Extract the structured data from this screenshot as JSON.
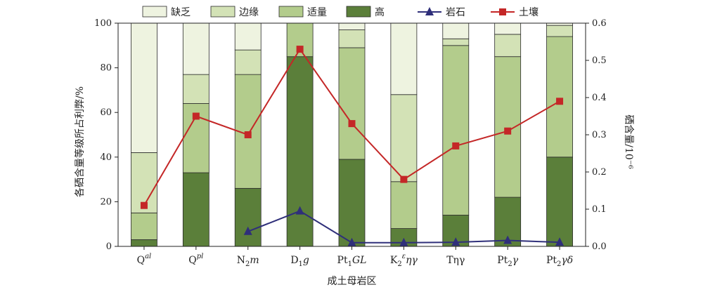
{
  "chart_data": {
    "type": "bar",
    "stacked": true,
    "xlabel": "成土母岩区",
    "ylabel": "各硒含量等级所占利弊/%",
    "y2label": "硒含量/10⁻⁶",
    "ylim": [
      0,
      100
    ],
    "y2lim": [
      0,
      0.6
    ],
    "yticks": [
      0,
      20,
      40,
      60,
      80,
      100
    ],
    "y2ticks": [
      "0.0",
      "0.1",
      "0.2",
      "0.3",
      "0.4",
      "0.5",
      "0.6"
    ],
    "categories": [
      {
        "base": "Q",
        "sup": "al",
        "sub": "",
        "tail": ""
      },
      {
        "base": "Q",
        "sup": "pl",
        "sub": "",
        "tail": ""
      },
      {
        "base": "N",
        "sub": "2",
        "sup": "",
        "tail": "m"
      },
      {
        "base": "D",
        "sub": "1",
        "sup": "",
        "tail": "g"
      },
      {
        "base": "Pt",
        "sub": "1",
        "sup": "",
        "tail": "GL"
      },
      {
        "base": "K",
        "sub": "2",
        "sup": "ε",
        "tail": "ηγ"
      },
      {
        "base": "Tηγ",
        "sub": "",
        "sup": "",
        "tail": ""
      },
      {
        "base": "Pt",
        "sub": "2",
        "sup": "",
        "tail": "γ"
      },
      {
        "base": "Pt",
        "sub": "2",
        "sup": "",
        "tail": "γδ"
      }
    ],
    "series": [
      {
        "name": "高",
        "kind": "bar",
        "color": "#5b7f3a",
        "values": [
          3,
          33,
          26,
          85,
          39,
          8,
          14,
          22,
          40
        ]
      },
      {
        "name": "适量",
        "kind": "bar",
        "color": "#b3cc8c",
        "values": [
          12,
          31,
          51,
          15,
          50,
          21,
          76,
          63,
          54
        ]
      },
      {
        "name": "边缘",
        "kind": "bar",
        "color": "#d3e2b6",
        "values": [
          27,
          13,
          11,
          0,
          8,
          39,
          3,
          10,
          5
        ]
      },
      {
        "name": "缺乏",
        "kind": "bar",
        "color": "#eef3e0",
        "values": [
          58,
          23,
          12,
          0,
          3,
          32,
          7,
          5,
          1
        ]
      },
      {
        "name": "岩石",
        "kind": "line",
        "axis": "right",
        "color": "#2f2f7a",
        "marker": "triangle",
        "values": [
          null,
          null,
          0.04,
          0.095,
          0.01,
          0.01,
          0.011,
          0.016,
          0.011
        ]
      },
      {
        "name": "土壤",
        "kind": "line",
        "axis": "right",
        "color": "#c42727",
        "marker": "square",
        "values": [
          0.11,
          0.35,
          0.3,
          0.53,
          0.33,
          0.18,
          0.27,
          0.31,
          0.39
        ]
      }
    ],
    "legend_order": [
      "缺乏",
      "边缘",
      "适量",
      "高",
      "岩石",
      "土壤"
    ],
    "legend_position": "top"
  }
}
